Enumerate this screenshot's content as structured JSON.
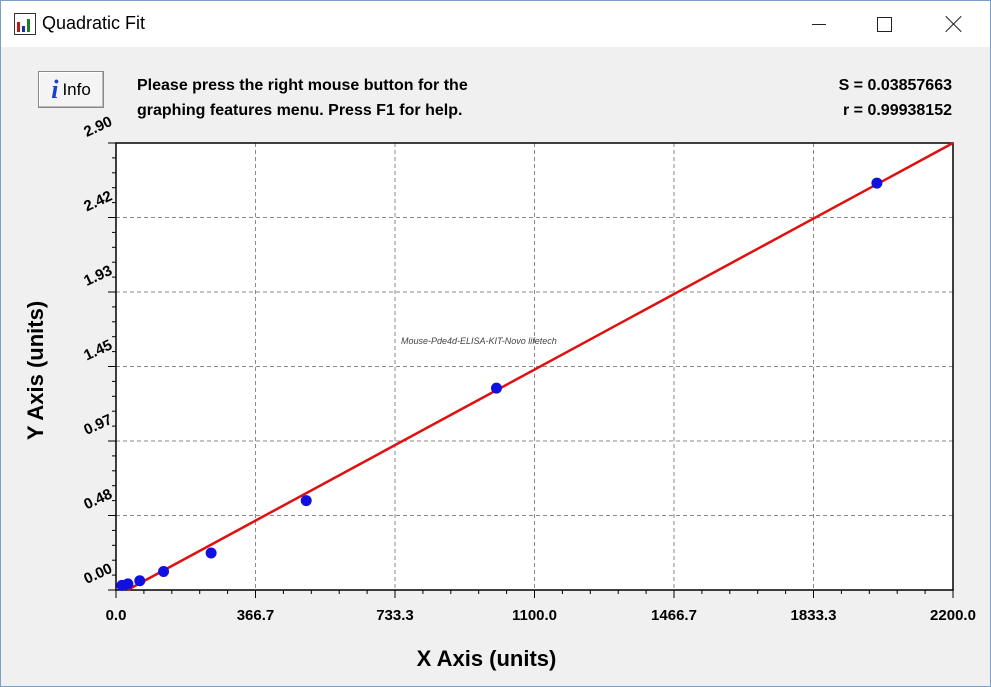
{
  "window": {
    "title": "Quadratic Fit"
  },
  "header": {
    "info_label": "Info",
    "instruction_line1": "Please press the right mouse button for the",
    "instruction_line2": "graphing features menu.  Press F1 for help.",
    "stat_s": "S = 0.03857663",
    "stat_r": "r = 0.99938152"
  },
  "chart_data": {
    "type": "scatter",
    "title": "",
    "xlabel": "X Axis (units)",
    "ylabel": "Y Axis (units)",
    "xlim": [
      0,
      2200
    ],
    "ylim": [
      0,
      2.9
    ],
    "x_ticks": [
      "0.0",
      "366.7",
      "733.3",
      "1100.0",
      "1466.7",
      "1833.3",
      "2200.0"
    ],
    "y_ticks": [
      "0.00",
      "0.48",
      "0.97",
      "1.45",
      "1.93",
      "2.42",
      "2.90"
    ],
    "grid": true,
    "watermark": "Mouse-Pde4d-ELISA-KIT-Novo lifetech",
    "points_color": "#1010e0",
    "fit_color": "#e01010",
    "series": [
      {
        "x": [
          15.6,
          31.25,
          62.5,
          125,
          250,
          500,
          1000,
          2000
        ],
        "y": [
          0.03,
          0.04,
          0.06,
          0.12,
          0.24,
          0.58,
          1.31,
          2.64
        ]
      }
    ],
    "fit_line": {
      "x": [
        30,
        2200
      ],
      "y": [
        0.0,
        2.9
      ]
    }
  }
}
